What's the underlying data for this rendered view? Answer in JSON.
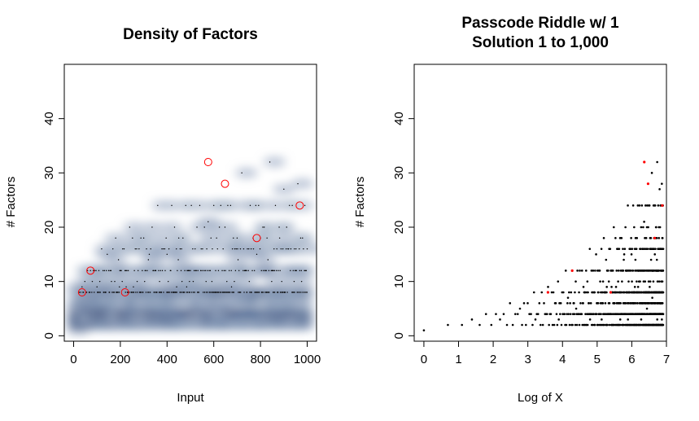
{
  "chart_data": [
    {
      "type": "heatmap",
      "title": "Density of Factors",
      "xlabel": "Input",
      "ylabel": "# Factors",
      "xlim": [
        -40,
        1040
      ],
      "ylim": [
        -1,
        50
      ],
      "xticks": [
        0,
        200,
        400,
        600,
        800,
        1000
      ],
      "yticks": [
        0,
        10,
        20,
        30,
        40
      ],
      "color_scale": {
        "low": "#ffffff",
        "high": "#08306b"
      },
      "highlight_color": "#ff0000",
      "highlight_points": [
        {
          "x": 36,
          "y": 8
        },
        {
          "x": 72,
          "y": 12
        },
        {
          "x": 220,
          "y": 8
        },
        {
          "x": 576,
          "y": 32
        },
        {
          "x": 648,
          "y": 28
        },
        {
          "x": 784,
          "y": 18
        },
        {
          "x": 968,
          "y": 24
        }
      ]
    },
    {
      "type": "scatter",
      "title": "Passcode Riddle w/ 1\nSolution 1 to 1,000",
      "title_lines": [
        "Passcode Riddle w/ 1",
        "Solution 1 to 1,000"
      ],
      "xlabel": "Log of X",
      "ylabel": "# Factors",
      "xlim": [
        -0.28,
        7.0
      ],
      "ylim": [
        -1,
        50
      ],
      "xticks": [
        0,
        1,
        2,
        3,
        4,
        5,
        6,
        7
      ],
      "yticks": [
        0,
        10,
        20,
        30,
        40
      ],
      "point_color": "#000000",
      "highlight_color": "#ff0000",
      "highlight_points": [
        {
          "x": 3.58,
          "y": 8
        },
        {
          "x": 4.28,
          "y": 12
        },
        {
          "x": 5.39,
          "y": 8
        },
        {
          "x": 6.36,
          "y": 32
        },
        {
          "x": 6.47,
          "y": 28
        },
        {
          "x": 6.66,
          "y": 18
        },
        {
          "x": 6.88,
          "y": 24
        }
      ]
    }
  ]
}
